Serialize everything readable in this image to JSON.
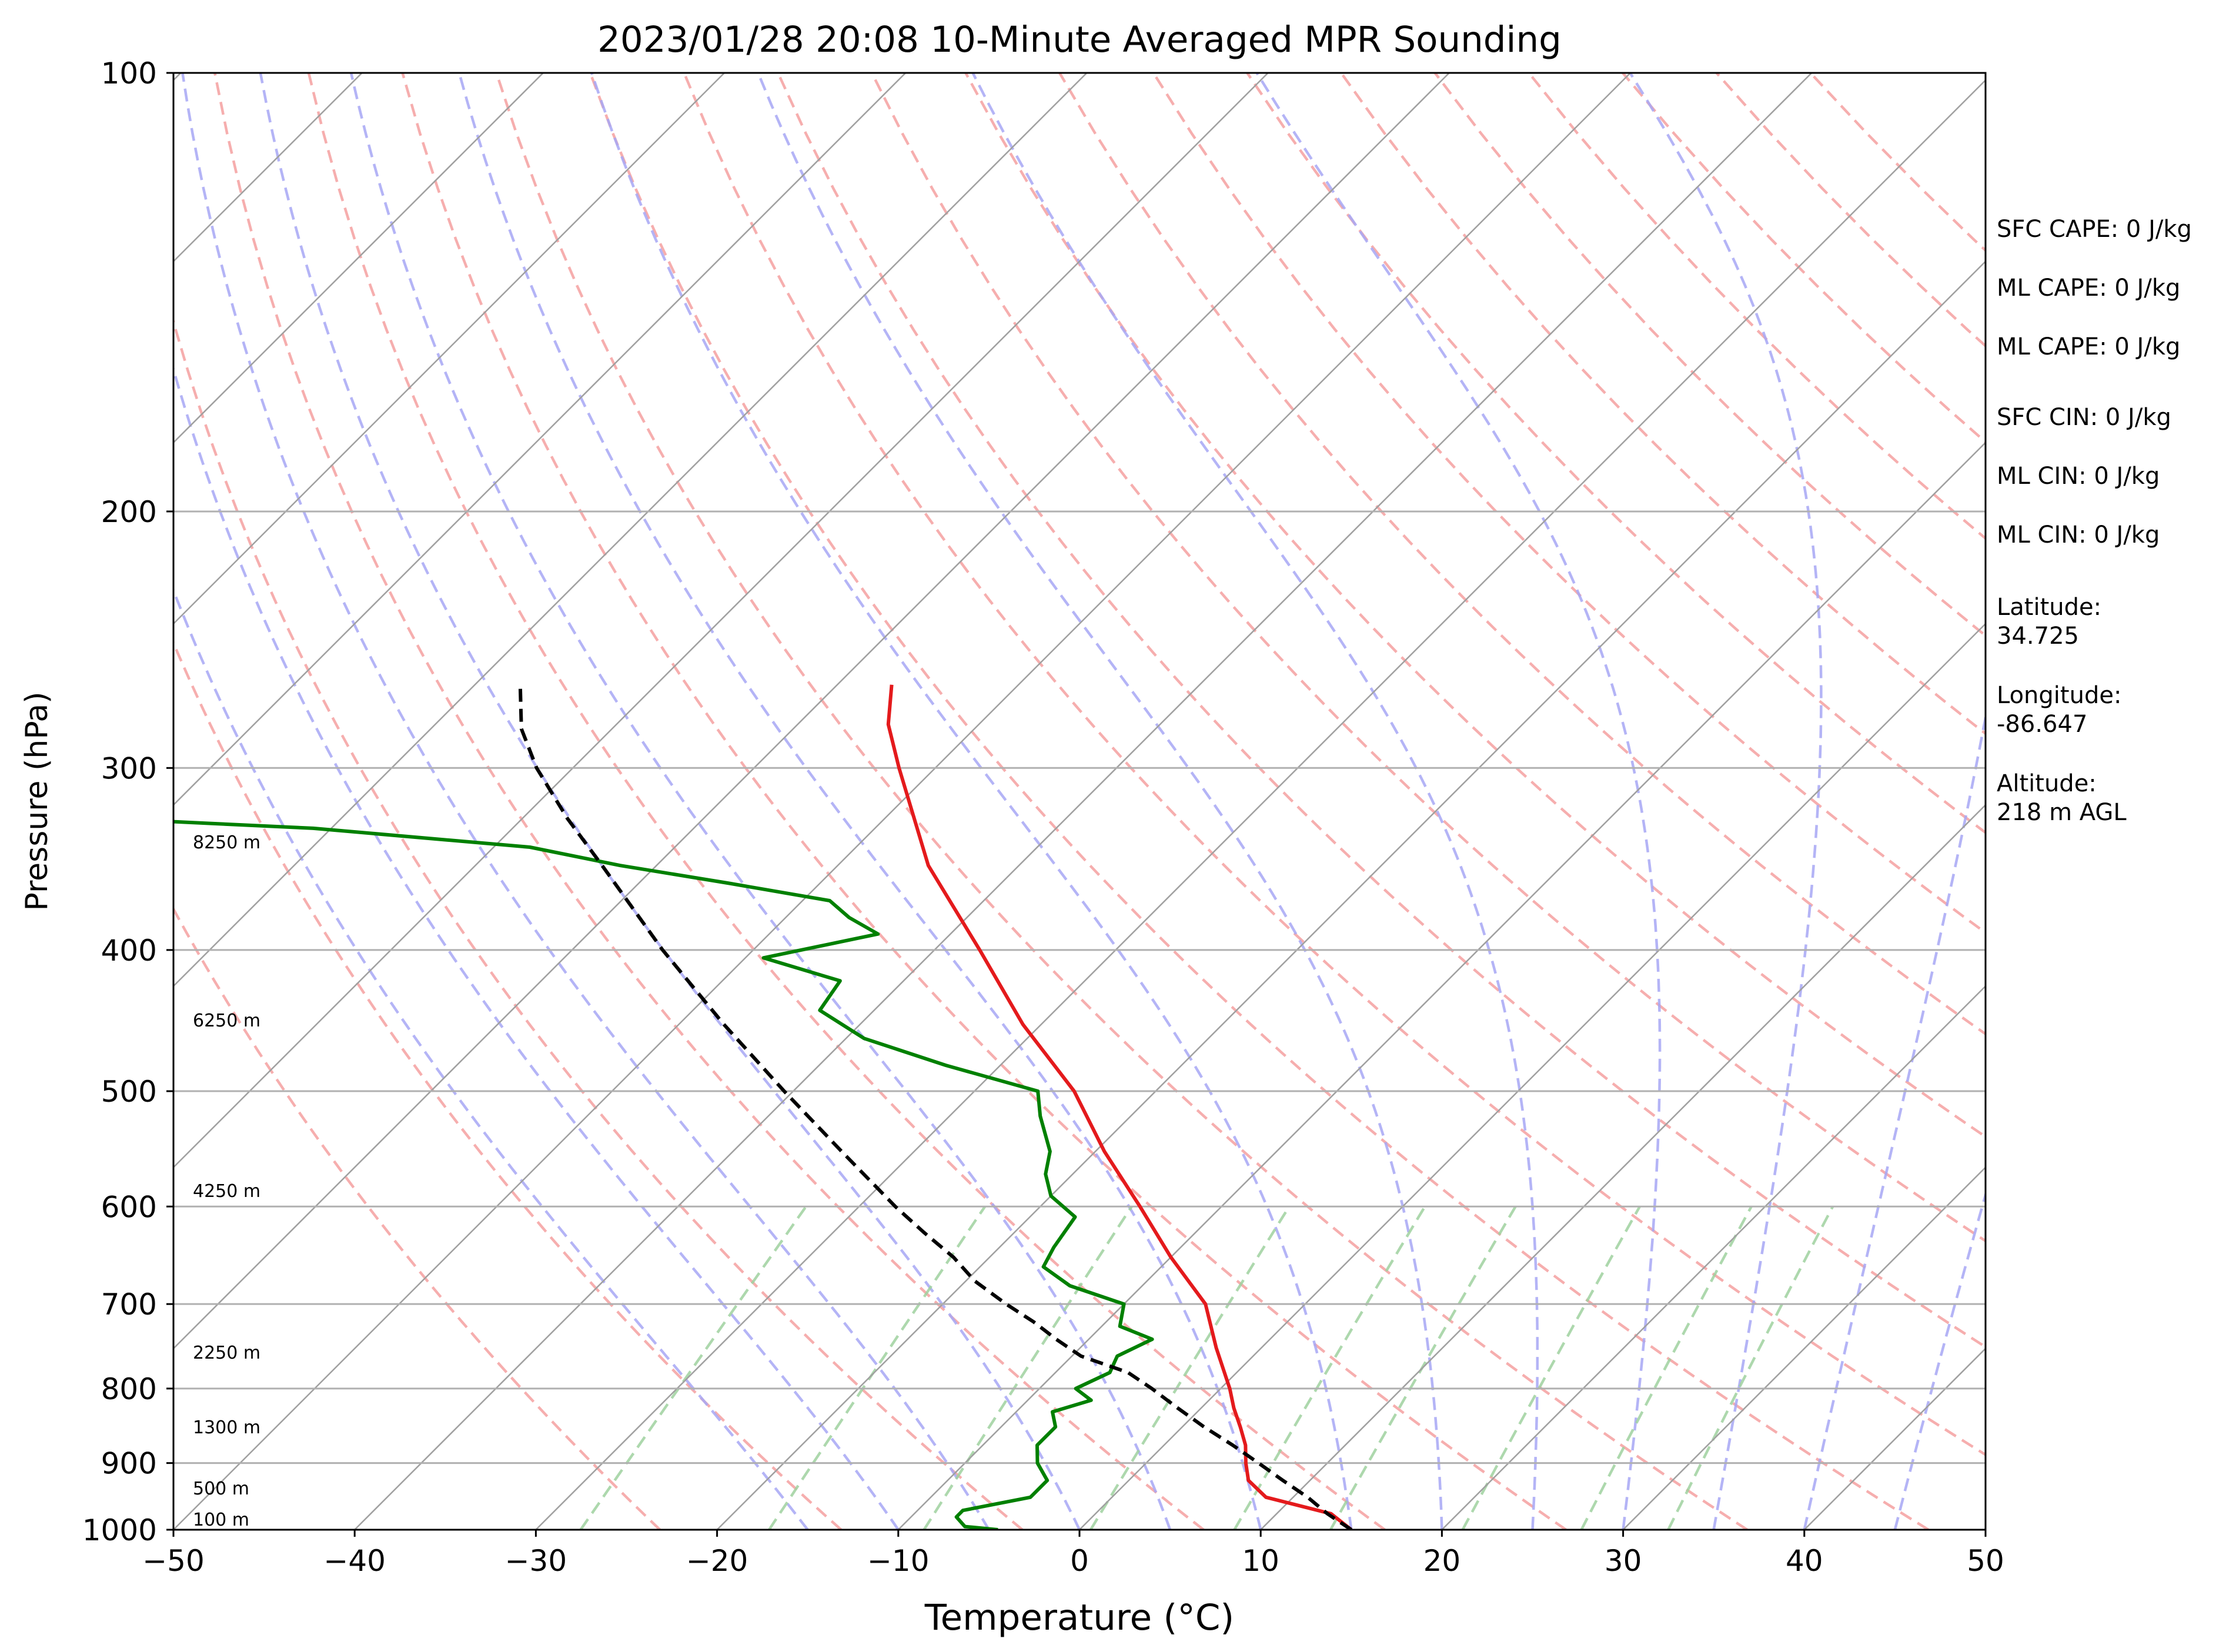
{
  "chart_data": {
    "type": "line",
    "title": "2023/01/28 20:08 10-Minute Averaged MPR Sounding",
    "xlabel": "Temperature (°C)",
    "ylabel": "Pressure (hPa)",
    "xlim": [
      -50,
      50
    ],
    "ylim": [
      1000,
      100
    ],
    "y_scale": "log",
    "skew_degrees": 45,
    "grid": true,
    "x_ticks": [
      -50,
      -40,
      -30,
      -20,
      -10,
      0,
      10,
      20,
      30,
      40,
      50
    ],
    "x_tick_labels": [
      "−50",
      "−40",
      "−30",
      "−20",
      "−10",
      "0",
      "10",
      "20",
      "30",
      "40",
      "50"
    ],
    "y_ticks": [
      1000,
      900,
      800,
      700,
      600,
      500,
      400,
      300,
      200,
      100
    ],
    "y_tick_labels": [
      "1000",
      "900",
      "800",
      "700",
      "600",
      "500",
      "400",
      "300",
      "200",
      "100"
    ],
    "series": [
      {
        "role": "temperature",
        "color": "#e41a1c",
        "points": [
          [
            15.0,
            1000
          ],
          [
            13.0,
            975
          ],
          [
            8.5,
            950
          ],
          [
            6.6,
            925
          ],
          [
            5.5,
            900
          ],
          [
            4.5,
            875
          ],
          [
            3.2,
            850
          ],
          [
            1.8,
            825
          ],
          [
            0.5,
            800
          ],
          [
            -2.5,
            750
          ],
          [
            -5.5,
            700
          ],
          [
            -10.0,
            650
          ],
          [
            -14.5,
            600
          ],
          [
            -19.5,
            550
          ],
          [
            -24.5,
            500
          ],
          [
            -31.0,
            450
          ],
          [
            -37.5,
            400
          ],
          [
            -45.0,
            350
          ],
          [
            -52.0,
            300
          ],
          [
            -55.0,
            280
          ],
          [
            -57.0,
            263
          ]
        ]
      },
      {
        "role": "dewpoint",
        "color": "#008000",
        "points": [
          [
            -4.5,
            1000
          ],
          [
            -6.5,
            995
          ],
          [
            -7.5,
            980
          ],
          [
            -7.5,
            970
          ],
          [
            -4.5,
            950
          ],
          [
            -4.5,
            925
          ],
          [
            -6.0,
            900
          ],
          [
            -7.0,
            875
          ],
          [
            -7.0,
            850
          ],
          [
            -8.0,
            830
          ],
          [
            -6.5,
            815
          ],
          [
            -8.0,
            800
          ],
          [
            -7.0,
            780
          ],
          [
            -7.5,
            760
          ],
          [
            -6.5,
            740
          ],
          [
            -9.0,
            725
          ],
          [
            -10.0,
            700
          ],
          [
            -14.0,
            680
          ],
          [
            -16.5,
            660
          ],
          [
            -17.0,
            640
          ],
          [
            -17.5,
            610
          ],
          [
            -20.0,
            590
          ],
          [
            -21.5,
            570
          ],
          [
            -22.5,
            550
          ],
          [
            -25.0,
            520
          ],
          [
            -26.5,
            500
          ],
          [
            -33.0,
            480
          ],
          [
            -39.0,
            460
          ],
          [
            -43.0,
            440
          ],
          [
            -43.5,
            420
          ],
          [
            -49.0,
            405
          ],
          [
            -44.0,
            390
          ],
          [
            -46.5,
            380
          ],
          [
            -48.5,
            370
          ],
          [
            -55.0,
            360
          ],
          [
            -62.0,
            350
          ],
          [
            -68.0,
            340
          ],
          [
            -81.0,
            330
          ],
          [
            -100.0,
            322
          ],
          [
            -100.0,
            262
          ],
          [
            -100.0,
            262
          ]
        ]
      },
      {
        "role": "parcel",
        "color": "#000000",
        "dashed": true,
        "points": [
          [
            15.0,
            1000
          ],
          [
            12.8,
            975
          ],
          [
            10.8,
            950
          ],
          [
            8.5,
            925
          ],
          [
            6.2,
            900
          ],
          [
            3.8,
            875
          ],
          [
            1.2,
            850
          ],
          [
            -1.3,
            825
          ],
          [
            -3.8,
            800
          ],
          [
            -6.0,
            780
          ],
          [
            -9.5,
            760
          ],
          [
            -11.8,
            740
          ],
          [
            -14.0,
            720
          ],
          [
            -16.5,
            700
          ],
          [
            -19.5,
            675
          ],
          [
            -22.0,
            650
          ],
          [
            -25.0,
            625
          ],
          [
            -28.0,
            600
          ],
          [
            -34.0,
            550
          ],
          [
            -40.5,
            500
          ],
          [
            -47.5,
            450
          ],
          [
            -55.0,
            400
          ],
          [
            -63.0,
            350
          ],
          [
            -67.5,
            325
          ],
          [
            -72.0,
            300
          ],
          [
            -75.0,
            282
          ],
          [
            -77.5,
            263
          ]
        ]
      }
    ],
    "annotations": {
      "height_labels": [
        "100 m",
        "500 m",
        "1300 m",
        "2250 m",
        "4250 m",
        "6250 m",
        "8250 m"
      ],
      "info": [
        "SFC CAPE: 0 J/kg",
        "ML CAPE: 0 J/kg",
        "ML CAPE: 0 J/kg",
        "SFC CIN: 0 J/kg",
        "ML CIN: 0 J/kg",
        "ML CIN: 0 J/kg",
        [
          "Latitude:",
          "34.725"
        ],
        [
          "Longitude:",
          "-86.647"
        ],
        [
          "Altitude:",
          "218 m AGL"
        ]
      ]
    },
    "background_lines": {
      "dry_adiabats_color": "#f5a0a0",
      "moist_adiabats_color": "#a7a7f5",
      "mixing_ratio_color": "#9fd19f",
      "isotherm_color": "#a0a0a0"
    }
  }
}
